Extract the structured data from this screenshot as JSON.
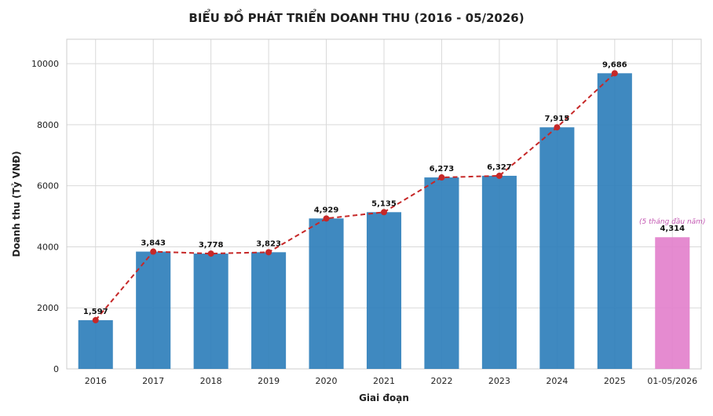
{
  "chart_data": {
    "type": "bar",
    "title": "BIỂU ĐỒ PHÁT TRIỂN DOANH THU (2016 - 05/2026)",
    "xlabel": "Giai đoạn",
    "ylabel": "Doanh thu (Tỷ VNĐ)",
    "ylim": [
      0,
      10800
    ],
    "yticks": [
      0,
      2000,
      4000,
      6000,
      8000,
      10000
    ],
    "grid": true,
    "categories": [
      "2016",
      "2017",
      "2018",
      "2019",
      "2020",
      "2021",
      "2022",
      "2023",
      "2024",
      "2025",
      "01-05/2026"
    ],
    "values": [
      1597,
      3843,
      3778,
      3823,
      4929,
      5135,
      6273,
      6327,
      7915,
      9686,
      4314
    ],
    "value_labels": [
      "1,597",
      "3,843",
      "3,778",
      "3,823",
      "4,929",
      "5,135",
      "6,273",
      "6,327",
      "7,915",
      "9,686",
      "4,314"
    ],
    "line_series": {
      "style": "dashed",
      "values": [
        1597,
        3843,
        3778,
        3823,
        4929,
        5135,
        6273,
        6327,
        7915,
        9686
      ]
    },
    "highlight": {
      "category": "01-05/2026",
      "annotation": "(5 tháng đầu năm)"
    },
    "colors": {
      "bar": "#2f7fbb",
      "highlight_bar": "#e381cc",
      "line": "#c62828",
      "annotation": "#c45ab3",
      "grid": "#d9d9d9"
    }
  }
}
